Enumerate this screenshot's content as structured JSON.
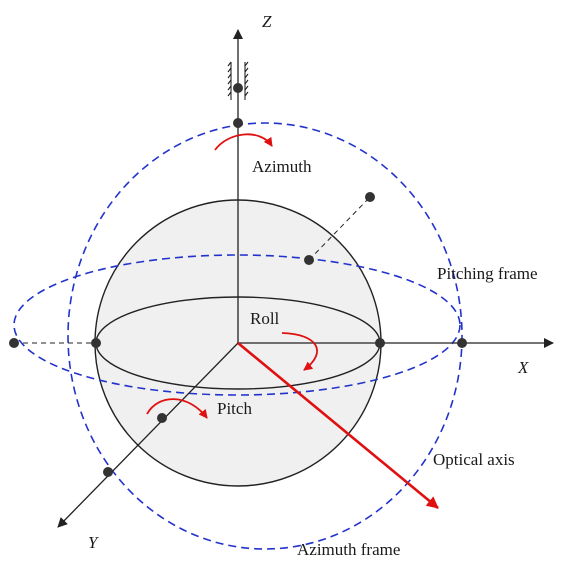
{
  "axes": {
    "x": "X",
    "y": "Y",
    "z": "Z"
  },
  "labels": {
    "azimuth": "Azimuth",
    "roll": "Roll",
    "pitch": "Pitch",
    "pitching_frame": "Pitching frame",
    "optical_axis": "Optical axis",
    "azimuth_frame": "Azimuth frame"
  },
  "colors": {
    "frame_dashed": "#2233cc",
    "rotation_arrow": "#e01010",
    "optical_axis": "#e01010",
    "sphere_fill": "#f0f0f0",
    "line": "#222222",
    "joint": "#333333"
  }
}
